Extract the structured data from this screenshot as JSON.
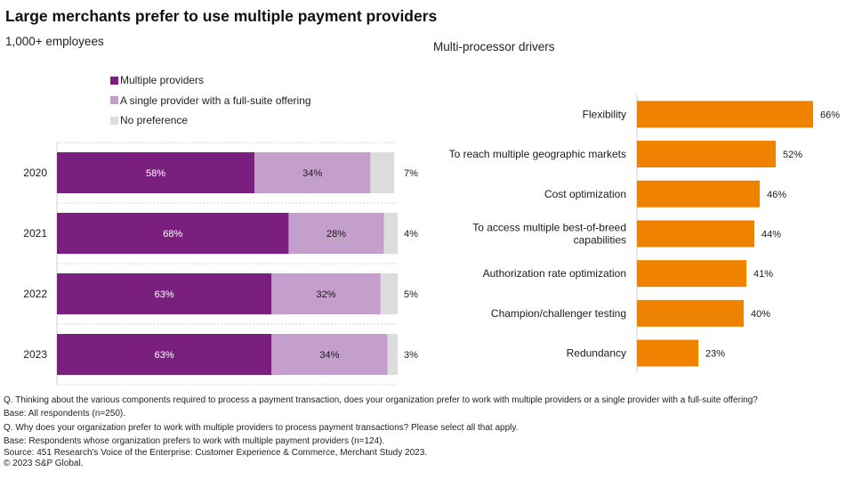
{
  "title": "Large merchants prefer to use multiple payment providers",
  "left_subtitle": "1,000+ employees",
  "right_subtitle": "Multi-processor drivers",
  "colors": {
    "multiple": "#7b1f7e",
    "single": "#c59fcc",
    "none": "#dcdcdc",
    "drivers": "#ef8200",
    "grid": "#d0d0d0"
  },
  "chart_data": [
    {
      "type": "bar",
      "orientation": "horizontal",
      "stacked": true,
      "title": "1,000+ employees",
      "categories": [
        "2020",
        "2021",
        "2022",
        "2023"
      ],
      "series": [
        {
          "name": "Multiple providers",
          "values": [
            58,
            68,
            63,
            63
          ],
          "labels": [
            "58%",
            "68%",
            "63%",
            "63%"
          ]
        },
        {
          "name": "A single provider with a full-suite offering",
          "values": [
            34,
            28,
            32,
            34
          ],
          "labels": [
            "34%",
            "28%",
            "32%",
            "34%"
          ]
        },
        {
          "name": "No preference",
          "values": [
            7,
            4,
            5,
            3
          ],
          "labels": [
            "7%",
            "4%",
            "5%",
            "3%"
          ]
        }
      ],
      "legend": "top"
    },
    {
      "type": "bar",
      "orientation": "horizontal",
      "title": "Multi-processor drivers",
      "categories": [
        [
          "Flexibility"
        ],
        [
          "To reach multiple geographic markets"
        ],
        [
          "Cost optimization"
        ],
        [
          "To access multiple best-of-breed",
          "capabilities"
        ],
        [
          "Authorization rate optimization"
        ],
        [
          "Champion/challenger testing"
        ],
        [
          "Redundancy"
        ]
      ],
      "values": [
        66,
        52,
        46,
        44,
        41,
        40,
        23
      ],
      "labels": [
        "66%",
        "52%",
        "46%",
        "44%",
        "41%",
        "40%",
        "23%"
      ]
    }
  ],
  "footnotes": [
    "Q. Thinking about the various components required to process a payment transaction, does your organization prefer to work with multiple providers or a single provider with a full-suite offering?",
    "Base: All respondents (n=250).",
    "Q. Why does your organization prefer to work with multiple providers to process payment transactions? Please select all that apply.",
    "Base: Respondents whose organization prefers to work with multiple payment providers (n=124).",
    "Source: 451 Research's Voice of the Enterprise: Customer Experience & Commerce, Merchant Study 2023.",
    "© 2023 S&P Global."
  ]
}
